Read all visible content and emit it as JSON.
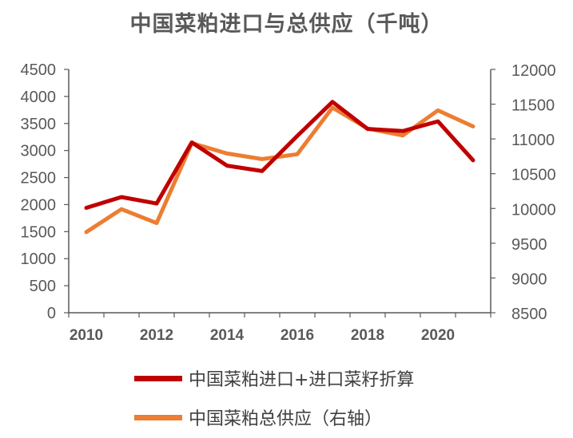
{
  "chart_data": {
    "type": "line",
    "title": "中国菜粕进口与总供应（千吨）",
    "x": [
      2010,
      2011,
      2012,
      2013,
      2014,
      2015,
      2016,
      2017,
      2018,
      2019,
      2020,
      2021
    ],
    "x_ticks": [
      "2010",
      "2012",
      "2014",
      "2016",
      "2018",
      "2020"
    ],
    "y_left": {
      "lim": [
        0,
        4500
      ],
      "ticks": [
        "0",
        "500",
        "1000",
        "1500",
        "2000",
        "2500",
        "3000",
        "3500",
        "4000",
        "4500"
      ]
    },
    "y_right": {
      "lim": [
        8500,
        12000
      ],
      "ticks": [
        "8500",
        "9000",
        "9500",
        "10000",
        "10500",
        "11000",
        "11500",
        "12000"
      ]
    },
    "grid": false,
    "legend_position": "bottom",
    "series": [
      {
        "name": "中国菜粕进口+进口菜籽折算",
        "axis": "left",
        "color": "#C00000",
        "values": [
          1940,
          2140,
          2020,
          3150,
          2720,
          2620,
          3270,
          3900,
          3400,
          3360,
          3540,
          2820
        ]
      },
      {
        "name": "中国菜粕总供应（右轴）",
        "axis": "right",
        "color": "#ED7D31",
        "values": [
          9660,
          9990,
          9790,
          10940,
          10790,
          10710,
          10780,
          11450,
          11150,
          11050,
          11410,
          11180
        ]
      }
    ]
  }
}
